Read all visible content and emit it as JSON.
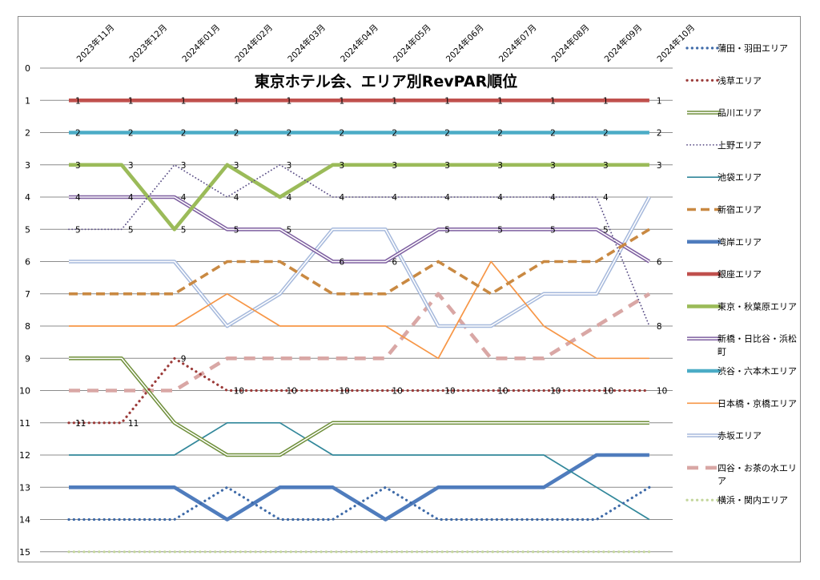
{
  "chart_data": {
    "type": "line",
    "title": "東京ホテル会、エリア別RevPAR順位",
    "xlabel": "",
    "ylabel": "",
    "ylim": [
      0,
      15
    ],
    "y_inverted": true,
    "y_ticks": [
      "0",
      "1",
      "2",
      "3",
      "4",
      "5",
      "6",
      "7",
      "8",
      "9",
      "10",
      "11",
      "12",
      "13",
      "14",
      "15"
    ],
    "grid": true,
    "legend_position": "right",
    "categories": [
      "2023年11月",
      "2023年12月",
      "2024年01月",
      "2024年02月",
      "2024年03月",
      "2024年04月",
      "2024年05月",
      "2024年06月",
      "2024年07月",
      "2024年08月",
      "2024年09月",
      "2024年10月"
    ],
    "series": [
      {
        "name": "蒲田・羽田エリア",
        "color": "#3e6aa8",
        "style": "dotted",
        "values": [
          14,
          14,
          14,
          13,
          14,
          14,
          13,
          14,
          14,
          14,
          14,
          13
        ]
      },
      {
        "name": "浅草エリア",
        "color": "#9b3a38",
        "style": "dotted",
        "values": [
          11,
          11,
          9,
          10,
          10,
          10,
          10,
          10,
          10,
          10,
          10,
          10
        ]
      },
      {
        "name": "品川エリア",
        "color": "#6f8f3a",
        "style": "double",
        "values": [
          9,
          9,
          11,
          12,
          12,
          11,
          11,
          11,
          11,
          11,
          11,
          11
        ]
      },
      {
        "name": "上野エリア",
        "color": "#5b4f87",
        "style": "dot-thin",
        "values": [
          5,
          5,
          3,
          4,
          3,
          4,
          4,
          4,
          4,
          4,
          4,
          8
        ]
      },
      {
        "name": "池袋エリア",
        "color": "#31879a",
        "style": "solid-thin",
        "values": [
          12,
          12,
          12,
          11,
          11,
          12,
          12,
          12,
          12,
          12,
          13,
          14
        ]
      },
      {
        "name": "新宿エリア",
        "color": "#c98942",
        "style": "dashed",
        "values": [
          7,
          7,
          7,
          6,
          6,
          7,
          7,
          6,
          7,
          6,
          6,
          5
        ]
      },
      {
        "name": "湾岸エリア",
        "color": "#4f7cbd",
        "style": "solid-thick",
        "values": [
          13,
          13,
          13,
          14,
          13,
          13,
          14,
          13,
          13,
          13,
          12,
          12
        ]
      },
      {
        "name": "銀座エリア",
        "color": "#c0504d",
        "style": "solid-thick",
        "values": [
          1,
          1,
          1,
          1,
          1,
          1,
          1,
          1,
          1,
          1,
          1,
          1
        ]
      },
      {
        "name": "東京・秋葉原エリア",
        "color": "#9bbb59",
        "style": "solid-thick",
        "values": [
          3,
          3,
          5,
          3,
          4,
          3,
          3,
          3,
          3,
          3,
          3,
          3
        ]
      },
      {
        "name": "新橋・日比谷・浜松町",
        "color": "#7e5fa0",
        "style": "double",
        "values": [
          4,
          4,
          4,
          5,
          5,
          6,
          6,
          5,
          5,
          5,
          5,
          6
        ]
      },
      {
        "name": "渋谷・六本木エリア",
        "color": "#4bacc6",
        "style": "solid-thick",
        "values": [
          2,
          2,
          2,
          2,
          2,
          2,
          2,
          2,
          2,
          2,
          2,
          2
        ]
      },
      {
        "name": "日本橋・京橋エリア",
        "color": "#f79646",
        "style": "solid-thin",
        "values": [
          8,
          8,
          8,
          7,
          8,
          8,
          8,
          9,
          6,
          8,
          9,
          9
        ]
      },
      {
        "name": "赤坂エリア",
        "color": "#a6b9dc",
        "style": "double",
        "values": [
          6,
          6,
          6,
          8,
          7,
          5,
          5,
          8,
          8,
          7,
          7,
          4
        ]
      },
      {
        "name": "四谷・お茶の水エリア",
        "color": "#d9a7a5",
        "style": "dashed-thick",
        "values": [
          10,
          10,
          10,
          9,
          9,
          9,
          9,
          7,
          9,
          9,
          8,
          7
        ]
      },
      {
        "name": "横浜・関内エリア",
        "color": "#c3d69b",
        "style": "dotted",
        "values": [
          15,
          15,
          15,
          15,
          15,
          15,
          15,
          15,
          15,
          15,
          15,
          15
        ]
      }
    ],
    "data_labels": [
      {
        "series": "銀座エリア",
        "values": [
          1,
          1,
          1,
          1,
          1,
          1,
          1,
          1,
          1,
          1,
          1,
          1
        ]
      },
      {
        "series": "渋谷・六本木エリア",
        "values": [
          2,
          2,
          2,
          2,
          2,
          2,
          2,
          2,
          2,
          2,
          2,
          2
        ]
      },
      {
        "series": "東京・秋葉原エリア",
        "values": [
          3,
          3,
          5,
          3,
          4,
          3,
          3,
          3,
          3,
          3,
          3,
          3
        ]
      },
      {
        "series": "上野エリア",
        "values": [
          5,
          5,
          3,
          4,
          3,
          4,
          4,
          4,
          4,
          4,
          4,
          8
        ]
      },
      {
        "series": "新橋・日比谷・浜松町",
        "values": [
          4,
          4,
          4,
          5,
          5,
          6,
          6,
          5,
          5,
          5,
          5,
          6
        ]
      },
      {
        "series": "浅草エリア",
        "values": [
          11,
          11,
          9,
          10,
          10,
          10,
          10,
          10,
          10,
          10,
          10,
          10
        ]
      }
    ]
  }
}
